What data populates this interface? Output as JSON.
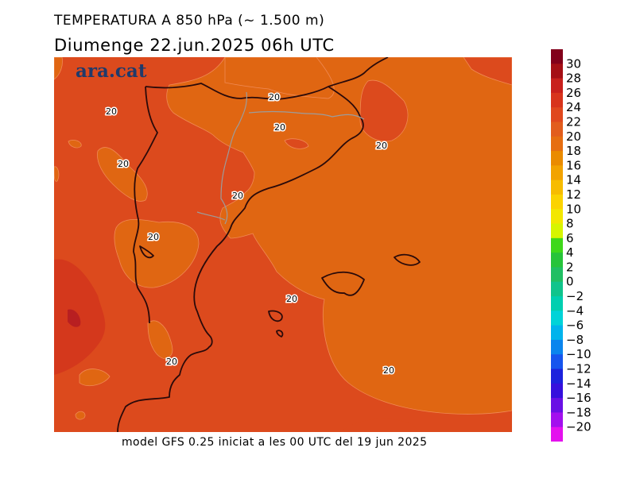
{
  "header": {
    "title": "TEMPERATURA A 850 hPa (~ 1.500 m)",
    "subtitle": "Diumenge  22.jun.2025 06h UTC"
  },
  "footer": {
    "text": "model GFS 0.25 iniciat a les 00 UTC del 19 jun 2025"
  },
  "logo": {
    "text": "ara.cat"
  },
  "map": {
    "background_color": "#dc4a1d",
    "contour_labels": [
      "20",
      "20",
      "20",
      "20",
      "20",
      "20",
      "20",
      "20",
      "20",
      "20"
    ]
  },
  "legend": {
    "labels": [
      "30",
      "28",
      "26",
      "24",
      "22",
      "20",
      "18",
      "16",
      "14",
      "12",
      "10",
      "8",
      "6",
      "4",
      "2",
      "0",
      "−2",
      "−4",
      "−6",
      "−8",
      "−10",
      "−12",
      "−14",
      "−16",
      "−18",
      "−20"
    ],
    "colors": [
      "#82001a",
      "#a50f15",
      "#c8201c",
      "#d8341c",
      "#e0481e",
      "#e25d1d",
      "#e66e11",
      "#ea8b00",
      "#f2a300",
      "#f7bc00",
      "#fbd300",
      "#f3e700",
      "#d7f500",
      "#3fd81a",
      "#27c43a",
      "#20bf63",
      "#10c48c",
      "#00cfb0",
      "#00d3d8",
      "#00b3ec",
      "#0a85ee",
      "#1655ee",
      "#1c22dd",
      "#3610dd",
      "#6a10e5",
      "#a310ee",
      "#e411ee"
    ]
  }
}
